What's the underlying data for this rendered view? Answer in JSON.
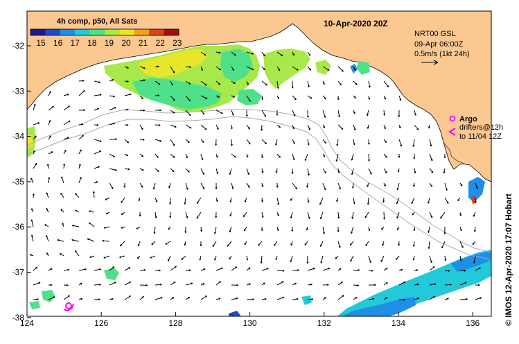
{
  "title": "10-Apr-2020 20Z",
  "colorbar": {
    "title": "4h comp, p50, All Sats",
    "ticks": [
      "15",
      "16",
      "17",
      "18",
      "19",
      "20",
      "21",
      "22",
      "23"
    ],
    "colors": [
      "#1a1a8c",
      "#1f49c8",
      "#1f8fe6",
      "#22c9d9",
      "#4fe08a",
      "#a8e84a",
      "#e6e62a",
      "#f0a022",
      "#d84418",
      "#a01010"
    ]
  },
  "current_info": {
    "line1": "NRT00 GSL",
    "line2": "09-Apr 06:00Z",
    "line3": "0.5m/s (1kt 24h)"
  },
  "legend": {
    "argo_label": "Argo",
    "drifters_line1": "drifters@12h",
    "drifters_line2": "to 11/04 12Z",
    "argo_color": "#ff00ff",
    "drifter_color": "#ff00ff"
  },
  "axes": {
    "x_ticks": [
      "124",
      "126",
      "128",
      "130",
      "132",
      "134",
      "136"
    ],
    "y_ticks": [
      "-32",
      "-33",
      "-34",
      "-35",
      "-36",
      "-37",
      "-38"
    ]
  },
  "colors": {
    "land": "#fcc891",
    "ocean": "#ffffff",
    "isobath": "#aaaaaa"
  },
  "credit": "© IMOS 12-Apr-2020 17:07 Hobart"
}
